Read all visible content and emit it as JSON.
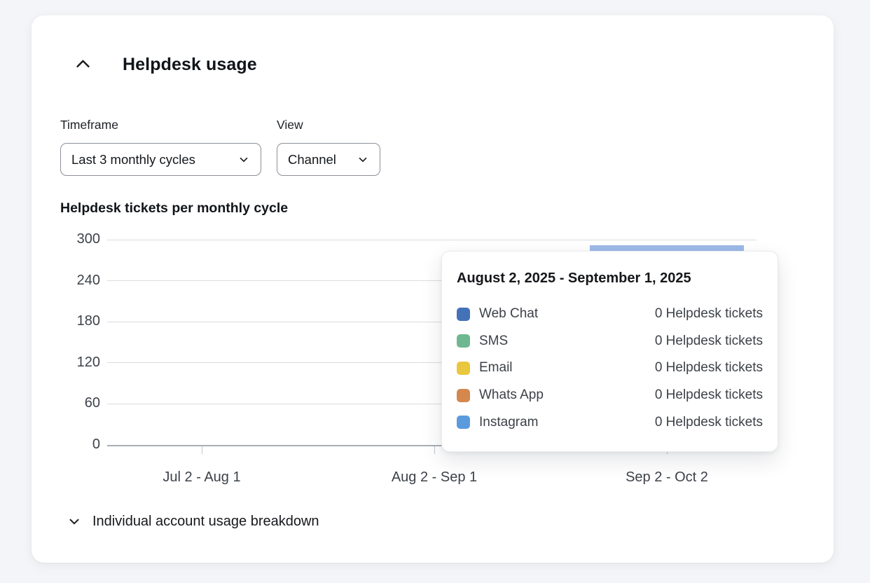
{
  "header": {
    "title": "Helpdesk usage"
  },
  "filters": {
    "timeframe": {
      "label": "Timeframe",
      "value": "Last 3 monthly cycles"
    },
    "view": {
      "label": "View",
      "value": "Channel"
    }
  },
  "chart_data": {
    "type": "bar",
    "title": "Helpdesk tickets per monthly cycle",
    "categories": [
      "Jul 2 - Aug 1",
      "Aug 2 - Sep 1",
      "Sep 2 - Oct 2"
    ],
    "y_ticks": [
      0,
      60,
      120,
      180,
      240,
      300
    ],
    "ylim": [
      0,
      300
    ],
    "grid": true,
    "series": [
      {
        "name": "Web Chat",
        "color": "#4472b8",
        "values": [
          0,
          0,
          null
        ]
      },
      {
        "name": "SMS",
        "color": "#6fb791",
        "values": [
          0,
          0,
          null
        ]
      },
      {
        "name": "Email",
        "color": "#e9c73e",
        "values": [
          0,
          0,
          null
        ]
      },
      {
        "name": "Whats App",
        "color": "#d4884e",
        "values": [
          0,
          0,
          null
        ]
      },
      {
        "name": "Instagram",
        "color": "#5b9bdd",
        "values": [
          0,
          0,
          null
        ]
      }
    ],
    "bar_totals": [
      0,
      0,
      292
    ],
    "visible_bar_color": "#9cbae7"
  },
  "tooltip": {
    "title": "August 2, 2025 - September 1, 2025",
    "rows": [
      {
        "label": "Web Chat",
        "color": "#4472b8",
        "value": "0 Helpdesk tickets"
      },
      {
        "label": "SMS",
        "color": "#6fb791",
        "value": "0 Helpdesk tickets"
      },
      {
        "label": "Email",
        "color": "#e9c73e",
        "value": "0 Helpdesk tickets"
      },
      {
        "label": "Whats App",
        "color": "#d4884e",
        "value": "0 Helpdesk tickets"
      },
      {
        "label": "Instagram",
        "color": "#5b9bdd",
        "value": "0 Helpdesk tickets"
      }
    ]
  },
  "footer": {
    "title": "Individual account usage breakdown"
  }
}
